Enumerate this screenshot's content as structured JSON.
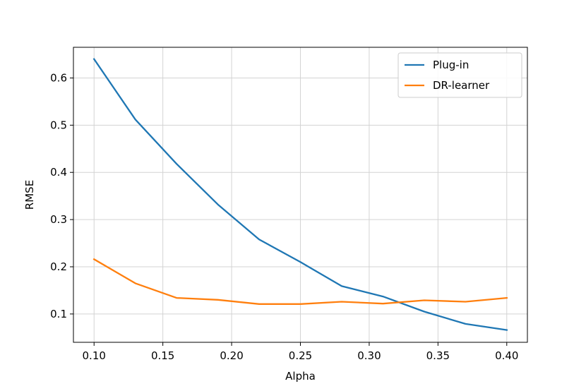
{
  "chart_data": {
    "type": "line",
    "xlabel": "Alpha",
    "ylabel": "RMSE",
    "xlim": [
      0.085,
      0.415
    ],
    "ylim": [
      0.04,
      0.665
    ],
    "x": [
      0.1,
      0.13,
      0.16,
      0.19,
      0.22,
      0.25,
      0.28,
      0.31,
      0.34,
      0.37,
      0.4
    ],
    "xticks": [
      0.1,
      0.15,
      0.2,
      0.25,
      0.3,
      0.35,
      0.4
    ],
    "xtick_labels": [
      "0.10",
      "0.15",
      "0.20",
      "0.25",
      "0.30",
      "0.35",
      "0.40"
    ],
    "yticks": [
      0.1,
      0.2,
      0.3,
      0.4,
      0.5,
      0.6
    ],
    "ytick_labels": [
      "0.1",
      "0.2",
      "0.3",
      "0.4",
      "0.5",
      "0.6"
    ],
    "grid": true,
    "legend_position": "top-right",
    "series": [
      {
        "name": "Plug-in",
        "color": "#1f77b4",
        "values": [
          0.64,
          0.512,
          0.418,
          0.332,
          0.258,
          0.21,
          0.159,
          0.137,
          0.105,
          0.079,
          0.066
        ]
      },
      {
        "name": "DR-learner",
        "color": "#ff7f0e",
        "values": [
          0.216,
          0.165,
          0.134,
          0.13,
          0.121,
          0.121,
          0.126,
          0.122,
          0.129,
          0.126,
          0.134
        ]
      }
    ]
  }
}
